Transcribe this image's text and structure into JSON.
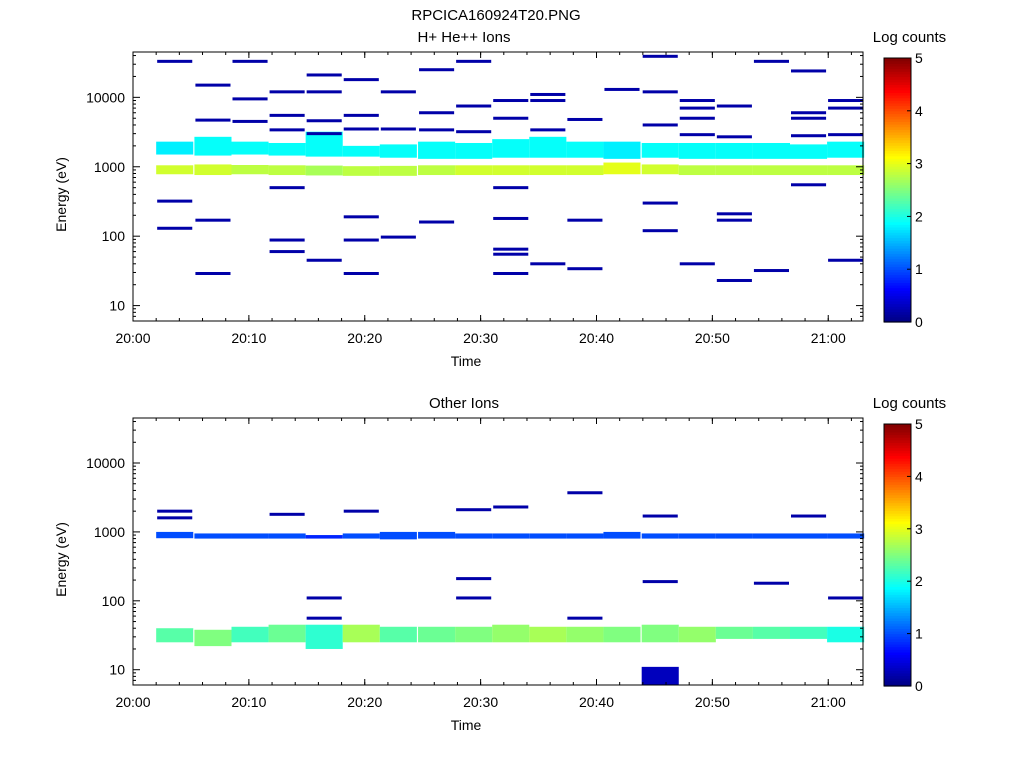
{
  "figure_title": "RPCICA160924T20.PNG",
  "chart_data": [
    {
      "type": "heatmap",
      "title": "H+ He++ Ions",
      "xlabel": "Time",
      "ylabel": "Energy (eV)",
      "colorbar_label": "Log counts",
      "colorbar_ticks": [
        "0",
        "1",
        "2",
        "3",
        "4",
        "5"
      ],
      "colorbar_range": [
        0,
        5
      ],
      "colorscale": "jet",
      "y_scale": "log",
      "ylim": [
        6,
        45000
      ],
      "xlim": [
        "20:00",
        "21:03"
      ],
      "x_ticks": [
        "20:00",
        "20:10",
        "20:20",
        "20:30",
        "20:40",
        "20:50",
        "21:00"
      ],
      "y_ticks": [
        "10",
        "100",
        "1000",
        "10000"
      ],
      "time_bins_start_min": [
        2,
        5.3,
        8.5,
        11.7,
        14.9,
        18.1,
        21.3,
        24.6,
        27.8,
        31,
        34.2,
        37.4,
        40.6,
        43.9,
        47.1,
        50.3,
        53.5,
        56.7,
        59.9
      ],
      "bin_width_min": 3.2,
      "band": {
        "energy_min": 630,
        "energy_max": 2300,
        "dominant_ranges": [
          [
            650,
            1000
          ],
          [
            1400,
            2100
          ]
        ],
        "levels_log_counts": [
          1.8,
          1.9,
          2.0,
          2.0,
          2.0,
          1.9,
          2.0,
          2.0,
          2.0,
          2.0,
          2.0,
          2.0,
          2.4,
          2.1,
          2.0,
          2.0,
          2.0,
          2.0,
          2.0
        ]
      },
      "cells": [
        {
          "t": 2,
          "e_lo": 1500,
          "e_hi": 2300,
          "v": 1.8
        },
        {
          "t": 2,
          "e_lo": 780,
          "e_hi": 1050,
          "v": 2.9
        },
        {
          "t": 5.3,
          "e_lo": 1450,
          "e_hi": 2700,
          "v": 1.9
        },
        {
          "t": 5.3,
          "e_lo": 760,
          "e_hi": 1080,
          "v": 2.9
        },
        {
          "t": 8.5,
          "e_lo": 1500,
          "e_hi": 2300,
          "v": 1.9
        },
        {
          "t": 8.5,
          "e_lo": 780,
          "e_hi": 1060,
          "v": 2.8
        },
        {
          "t": 11.7,
          "e_lo": 1450,
          "e_hi": 2200,
          "v": 1.9
        },
        {
          "t": 11.7,
          "e_lo": 760,
          "e_hi": 1050,
          "v": 2.8
        },
        {
          "t": 14.9,
          "e_lo": 1400,
          "e_hi": 3200,
          "v": 1.9
        },
        {
          "t": 14.9,
          "e_lo": 750,
          "e_hi": 1040,
          "v": 2.7
        },
        {
          "t": 18.1,
          "e_lo": 1400,
          "e_hi": 2000,
          "v": 1.9
        },
        {
          "t": 18.1,
          "e_lo": 740,
          "e_hi": 1020,
          "v": 2.8
        },
        {
          "t": 21.3,
          "e_lo": 1350,
          "e_hi": 2100,
          "v": 1.9
        },
        {
          "t": 21.3,
          "e_lo": 740,
          "e_hi": 1030,
          "v": 2.8
        },
        {
          "t": 24.6,
          "e_lo": 1300,
          "e_hi": 2300,
          "v": 1.9
        },
        {
          "t": 24.6,
          "e_lo": 760,
          "e_hi": 1050,
          "v": 2.8
        },
        {
          "t": 27.8,
          "e_lo": 1300,
          "e_hi": 2200,
          "v": 1.9
        },
        {
          "t": 27.8,
          "e_lo": 760,
          "e_hi": 1050,
          "v": 2.9
        },
        {
          "t": 31,
          "e_lo": 1350,
          "e_hi": 2500,
          "v": 1.9
        },
        {
          "t": 31,
          "e_lo": 760,
          "e_hi": 1050,
          "v": 2.9
        },
        {
          "t": 34.2,
          "e_lo": 1350,
          "e_hi": 2700,
          "v": 1.9
        },
        {
          "t": 34.2,
          "e_lo": 760,
          "e_hi": 1050,
          "v": 2.9
        },
        {
          "t": 37.4,
          "e_lo": 1350,
          "e_hi": 2300,
          "v": 1.9
        },
        {
          "t": 37.4,
          "e_lo": 760,
          "e_hi": 1050,
          "v": 2.9
        },
        {
          "t": 40.6,
          "e_lo": 1300,
          "e_hi": 2300,
          "v": 1.8
        },
        {
          "t": 40.6,
          "e_lo": 780,
          "e_hi": 1150,
          "v": 3.0
        },
        {
          "t": 43.9,
          "e_lo": 1350,
          "e_hi": 2200,
          "v": 1.9
        },
        {
          "t": 43.9,
          "e_lo": 780,
          "e_hi": 1080,
          "v": 2.9
        },
        {
          "t": 47.1,
          "e_lo": 1300,
          "e_hi": 2200,
          "v": 1.9
        },
        {
          "t": 47.1,
          "e_lo": 760,
          "e_hi": 1050,
          "v": 2.8
        },
        {
          "t": 50.3,
          "e_lo": 1300,
          "e_hi": 2200,
          "v": 1.9
        },
        {
          "t": 50.3,
          "e_lo": 760,
          "e_hi": 1050,
          "v": 2.8
        },
        {
          "t": 53.5,
          "e_lo": 1300,
          "e_hi": 2200,
          "v": 1.9
        },
        {
          "t": 53.5,
          "e_lo": 760,
          "e_hi": 1050,
          "v": 2.8
        },
        {
          "t": 56.7,
          "e_lo": 1300,
          "e_hi": 2100,
          "v": 1.9
        },
        {
          "t": 56.7,
          "e_lo": 760,
          "e_hi": 1050,
          "v": 2.8
        },
        {
          "t": 59.9,
          "e_lo": 1350,
          "e_hi": 2300,
          "v": 1.9
        },
        {
          "t": 59.9,
          "e_lo": 760,
          "e_hi": 1050,
          "v": 2.8
        }
      ],
      "sparse": [
        {
          "t": 2,
          "e": [
            33000,
            320,
            130
          ]
        },
        {
          "t": 5.3,
          "e": [
            15000,
            4700,
            170,
            29
          ]
        },
        {
          "t": 8.5,
          "e": [
            33000,
            9500,
            4500
          ]
        },
        {
          "t": 11.7,
          "e": [
            12000,
            5500,
            3400,
            500,
            88,
            60
          ]
        },
        {
          "t": 14.9,
          "e": [
            21000,
            12000,
            4600,
            3000,
            45
          ]
        },
        {
          "t": 18.1,
          "e": [
            18000,
            5500,
            3500,
            190,
            88,
            29
          ]
        },
        {
          "t": 21.3,
          "e": [
            12000,
            3500,
            97
          ]
        },
        {
          "t": 24.6,
          "e": [
            25000,
            6000,
            3400,
            160
          ]
        },
        {
          "t": 27.8,
          "e": [
            33000,
            7500,
            3200
          ]
        },
        {
          "t": 31,
          "e": [
            9000,
            5000,
            500,
            180,
            65,
            55,
            29
          ]
        },
        {
          "t": 34.2,
          "e": [
            11000,
            9000,
            3400,
            40
          ]
        },
        {
          "t": 37.4,
          "e": [
            4800,
            170,
            34
          ]
        },
        {
          "t": 40.6,
          "e": [
            13000
          ]
        },
        {
          "t": 43.9,
          "e": [
            39000,
            12000,
            4000,
            300,
            120
          ]
        },
        {
          "t": 47.1,
          "e": [
            9000,
            7000,
            5000,
            2900,
            40
          ]
        },
        {
          "t": 50.3,
          "e": [
            7500,
            2700,
            210,
            170,
            23
          ]
        },
        {
          "t": 53.5,
          "e": [
            33000,
            32
          ]
        },
        {
          "t": 56.7,
          "e": [
            24000,
            6000,
            5000,
            2800,
            550
          ]
        },
        {
          "t": 59.9,
          "e": [
            9000,
            7000,
            2900,
            45
          ]
        }
      ]
    },
    {
      "type": "heatmap",
      "title": "Other Ions",
      "xlabel": "Time",
      "ylabel": "Energy (eV)",
      "colorbar_label": "Log counts",
      "colorbar_ticks": [
        "0",
        "1",
        "2",
        "3",
        "4",
        "5"
      ],
      "colorbar_range": [
        0,
        5
      ],
      "colorscale": "jet",
      "y_scale": "log",
      "ylim": [
        6,
        45000
      ],
      "xlim": [
        "20:00",
        "21:03"
      ],
      "x_ticks": [
        "20:00",
        "20:10",
        "20:20",
        "20:30",
        "20:40",
        "20:50",
        "21:00"
      ],
      "y_ticks": [
        "10",
        "100",
        "1000",
        "10000"
      ],
      "time_bins_start_min": [
        2,
        5.3,
        8.5,
        11.7,
        14.9,
        18.1,
        21.3,
        24.6,
        27.8,
        31,
        34.2,
        37.4,
        40.6,
        43.9,
        47.1,
        50.3,
        53.5,
        56.7,
        59.9
      ],
      "bin_width_min": 3.2,
      "cells": [
        {
          "t": 2,
          "e_lo": 810,
          "e_hi": 1000,
          "v": 1.0
        },
        {
          "t": 2,
          "e_lo": 25,
          "e_hi": 40,
          "v": 2.3
        },
        {
          "t": 5.3,
          "e_lo": 800,
          "e_hi": 950,
          "v": 1.0
        },
        {
          "t": 5.3,
          "e_lo": 22,
          "e_hi": 38,
          "v": 2.5
        },
        {
          "t": 8.5,
          "e_lo": 800,
          "e_hi": 950,
          "v": 1.0
        },
        {
          "t": 8.5,
          "e_lo": 25,
          "e_hi": 42,
          "v": 2.2
        },
        {
          "t": 11.7,
          "e_lo": 800,
          "e_hi": 950,
          "v": 1.0
        },
        {
          "t": 11.7,
          "e_lo": 25,
          "e_hi": 45,
          "v": 2.4
        },
        {
          "t": 14.9,
          "e_lo": 800,
          "e_hi": 900,
          "v": 0.8
        },
        {
          "t": 14.9,
          "e_lo": 20,
          "e_hi": 45,
          "v": 2.1
        },
        {
          "t": 18.1,
          "e_lo": 800,
          "e_hi": 950,
          "v": 1.0
        },
        {
          "t": 18.1,
          "e_lo": 25,
          "e_hi": 45,
          "v": 2.7
        },
        {
          "t": 21.3,
          "e_lo": 780,
          "e_hi": 1000,
          "v": 1.0
        },
        {
          "t": 21.3,
          "e_lo": 25,
          "e_hi": 42,
          "v": 2.3
        },
        {
          "t": 24.6,
          "e_lo": 800,
          "e_hi": 1000,
          "v": 1.0
        },
        {
          "t": 24.6,
          "e_lo": 25,
          "e_hi": 42,
          "v": 2.4
        },
        {
          "t": 27.8,
          "e_lo": 800,
          "e_hi": 950,
          "v": 1.0
        },
        {
          "t": 27.8,
          "e_lo": 25,
          "e_hi": 42,
          "v": 2.5
        },
        {
          "t": 31,
          "e_lo": 800,
          "e_hi": 950,
          "v": 1.0
        },
        {
          "t": 31,
          "e_lo": 25,
          "e_hi": 45,
          "v": 2.6
        },
        {
          "t": 34.2,
          "e_lo": 800,
          "e_hi": 950,
          "v": 1.0
        },
        {
          "t": 34.2,
          "e_lo": 25,
          "e_hi": 42,
          "v": 2.7
        },
        {
          "t": 37.4,
          "e_lo": 800,
          "e_hi": 950,
          "v": 1.0
        },
        {
          "t": 37.4,
          "e_lo": 25,
          "e_hi": 42,
          "v": 2.6
        },
        {
          "t": 40.6,
          "e_lo": 800,
          "e_hi": 1000,
          "v": 1.0
        },
        {
          "t": 40.6,
          "e_lo": 25,
          "e_hi": 42,
          "v": 2.5
        },
        {
          "t": 43.9,
          "e_lo": 800,
          "e_hi": 950,
          "v": 1.0
        },
        {
          "t": 43.9,
          "e_lo": 25,
          "e_hi": 45,
          "v": 2.5
        },
        {
          "t": 47.1,
          "e_lo": 800,
          "e_hi": 950,
          "v": 1.0
        },
        {
          "t": 47.1,
          "e_lo": 25,
          "e_hi": 42,
          "v": 2.6
        },
        {
          "t": 50.3,
          "e_lo": 800,
          "e_hi": 950,
          "v": 1.0
        },
        {
          "t": 50.3,
          "e_lo": 28,
          "e_hi": 42,
          "v": 2.4
        },
        {
          "t": 53.5,
          "e_lo": 800,
          "e_hi": 950,
          "v": 1.0
        },
        {
          "t": 53.5,
          "e_lo": 28,
          "e_hi": 42,
          "v": 2.3
        },
        {
          "t": 56.7,
          "e_lo": 800,
          "e_hi": 950,
          "v": 1.0
        },
        {
          "t": 56.7,
          "e_lo": 28,
          "e_hi": 42,
          "v": 2.2
        },
        {
          "t": 59.9,
          "e_lo": 800,
          "e_hi": 950,
          "v": 1.0
        },
        {
          "t": 59.9,
          "e_lo": 25,
          "e_hi": 42,
          "v": 2.0
        }
      ],
      "sparse": [
        {
          "t": 2,
          "e": [
            2000,
            1600
          ]
        },
        {
          "t": 5.3,
          "e": []
        },
        {
          "t": 8.5,
          "e": []
        },
        {
          "t": 11.7,
          "e": [
            1800
          ]
        },
        {
          "t": 14.9,
          "e": [
            110,
            56
          ]
        },
        {
          "t": 18.1,
          "e": [
            2000
          ]
        },
        {
          "t": 21.3,
          "e": []
        },
        {
          "t": 24.6,
          "e": []
        },
        {
          "t": 27.8,
          "e": [
            2100,
            210,
            110
          ]
        },
        {
          "t": 31,
          "e": [
            2300
          ]
        },
        {
          "t": 34.2,
          "e": []
        },
        {
          "t": 37.4,
          "e": [
            3700,
            56
          ]
        },
        {
          "t": 40.6,
          "e": []
        },
        {
          "t": 43.9,
          "e": [
            1700,
            190
          ]
        },
        {
          "t": 47.1,
          "e": []
        },
        {
          "t": 50.3,
          "e": []
        },
        {
          "t": 53.5,
          "e": [
            180
          ]
        },
        {
          "t": 56.7,
          "e": [
            1700
          ]
        },
        {
          "t": 59.9,
          "e": [
            110
          ]
        }
      ],
      "block": {
        "t": 43.9,
        "e_lo": 6,
        "e_hi": 11,
        "v": 0.3
      }
    }
  ]
}
